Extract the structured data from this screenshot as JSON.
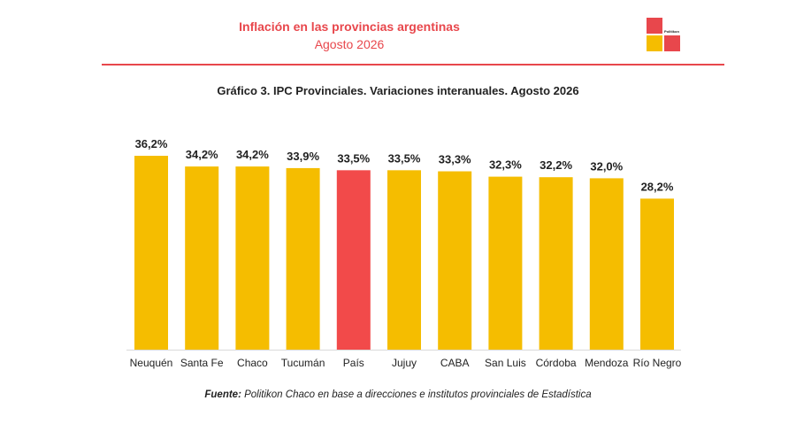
{
  "header": {
    "title": "Inflación en las provincias argentinas",
    "subtitle": "Agosto 2026",
    "logo_text": "Politikon"
  },
  "colors": {
    "accent": "#e8474c",
    "bar": "#f5bd00",
    "highlight": "#f24a4a"
  },
  "chart_data": {
    "type": "bar",
    "title": "Gráfico 3. IPC Provinciales. Variaciones interanuales. Agosto 2026",
    "categories": [
      "Neuquén",
      "Santa Fe",
      "Chaco",
      "Tucumán",
      "País",
      "Jujuy",
      "CABA",
      "San Luis",
      "Córdoba",
      "Mendoza",
      "Río Negro"
    ],
    "values": [
      36.2,
      34.2,
      34.2,
      33.9,
      33.5,
      33.5,
      33.3,
      32.3,
      32.2,
      32.0,
      28.2
    ],
    "value_labels": [
      "36,2%",
      "34,2%",
      "34,2%",
      "33,9%",
      "33,5%",
      "33,5%",
      "33,3%",
      "32,3%",
      "32,2%",
      "32,0%",
      "28,2%"
    ],
    "highlight_category": "País",
    "xlabel": "",
    "ylabel": "",
    "ylim": [
      0,
      36.2
    ],
    "grid": false,
    "legend": "none"
  },
  "source": {
    "label": "Fuente:",
    "text": " Politikon Chaco en base a direcciones e institutos provinciales de Estadística"
  }
}
